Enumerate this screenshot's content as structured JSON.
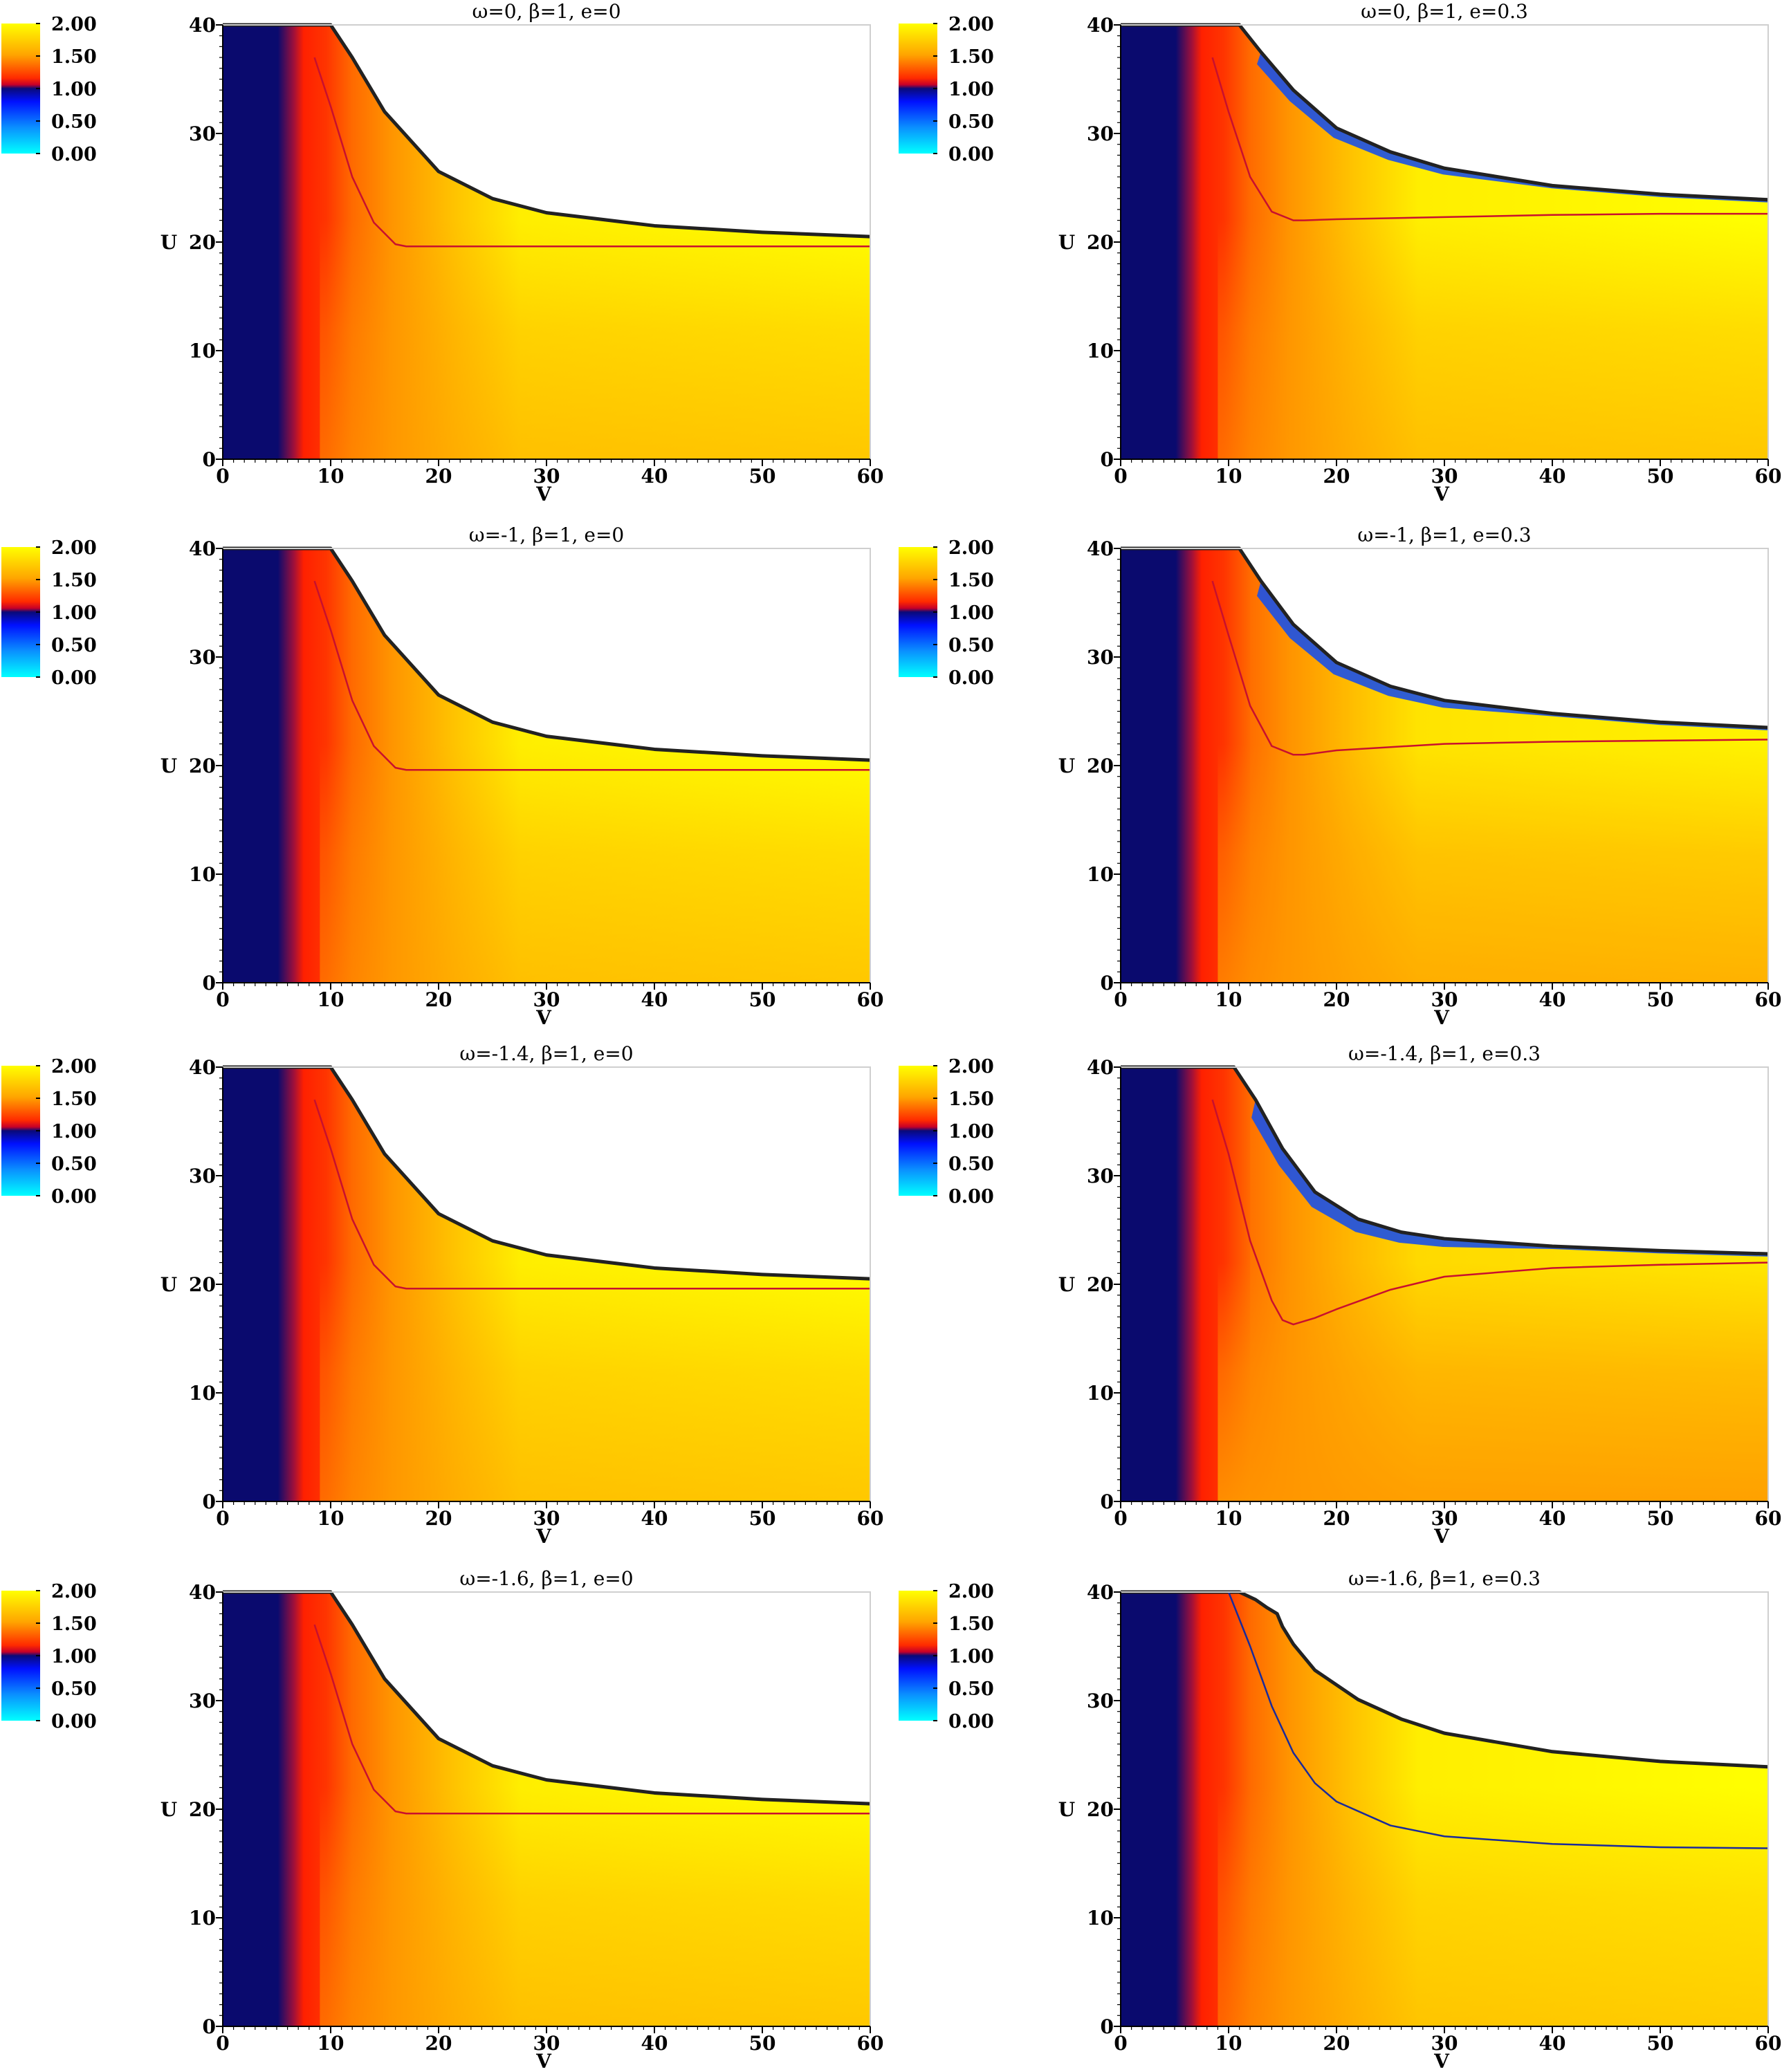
{
  "colorbar": {
    "ticks": [
      "2.00",
      "1.50",
      "1.00",
      "0.50",
      "0.00"
    ],
    "stops": [
      {
        "offset": 0.0,
        "color": "#ffff00"
      },
      {
        "offset": 0.24,
        "color": "#ffa500"
      },
      {
        "offset": 0.42,
        "color": "#ff2a00"
      },
      {
        "offset": 0.47,
        "color": "#c80028"
      },
      {
        "offset": 0.5,
        "color": "#0a0a78"
      },
      {
        "offset": 0.6,
        "color": "#0010ff"
      },
      {
        "offset": 0.8,
        "color": "#0a90ff"
      },
      {
        "offset": 1.0,
        "color": "#00ffff"
      }
    ]
  },
  "colors": {
    "dark_region": "#0a0a6e",
    "red": "#ff2000",
    "orange": "#ff9400",
    "yellow": "#ffff00",
    "blue_sliver": "#1a50e8",
    "boundary": "#222222",
    "red_curve": "#c8102e",
    "blue_curve": "#1a2a9a"
  },
  "chart_data": [
    {
      "type": "heatmap",
      "title": "ω=0,   β=1,   e=0",
      "xlabel": "V",
      "ylabel": "U",
      "xlim": [
        0,
        60
      ],
      "ylim": [
        0,
        40
      ],
      "xticks": [
        "0",
        "10",
        "20",
        "30",
        "40",
        "50",
        "60"
      ],
      "yticks": [
        "0",
        "10",
        "20",
        "30",
        "40"
      ],
      "colorbar_range": [
        0.0,
        2.0
      ],
      "boundary": {
        "x": [
          0,
          10,
          12,
          15,
          20,
          25,
          30,
          40,
          50,
          60
        ],
        "y": [
          40,
          40,
          37,
          32,
          26.5,
          24,
          22.7,
          21.5,
          20.9,
          20.5
        ]
      },
      "contour": {
        "x": [
          8.5,
          10,
          12,
          14,
          16,
          17,
          20,
          30,
          40,
          50,
          60
        ],
        "y": [
          37,
          32.5,
          26,
          21.8,
          19.8,
          19.6,
          19.6,
          19.6,
          19.6,
          19.6,
          19.6
        ]
      },
      "contour_color": "red",
      "blue_sliver": false,
      "orange_strength": 1.0
    },
    {
      "type": "heatmap",
      "title": "ω=0,   β=1,   e=0.3",
      "xlabel": "V",
      "ylabel": "U",
      "xlim": [
        0,
        60
      ],
      "ylim": [
        0,
        40
      ],
      "xticks": [
        "0",
        "10",
        "20",
        "30",
        "40",
        "50",
        "60"
      ],
      "yticks": [
        "0",
        "10",
        "20",
        "30",
        "40"
      ],
      "colorbar_range": [
        0.0,
        2.0
      ],
      "boundary": {
        "x": [
          0,
          11,
          13,
          16,
          20,
          25,
          30,
          40,
          50,
          60
        ],
        "y": [
          40,
          40,
          37.5,
          34,
          30.5,
          28.3,
          26.8,
          25.2,
          24.4,
          23.9
        ]
      },
      "contour": {
        "x": [
          8.5,
          10,
          12,
          14,
          16,
          17,
          20,
          30,
          40,
          50,
          60
        ],
        "y": [
          37,
          32,
          26,
          22.8,
          22,
          22,
          22.1,
          22.3,
          22.5,
          22.6,
          22.6
        ]
      },
      "contour_color": "red",
      "blue_sliver": true,
      "orange_strength": 1.0
    },
    {
      "type": "heatmap",
      "title": "ω=-1,   β=1,   e=0",
      "xlabel": "V",
      "ylabel": "U",
      "xlim": [
        0,
        60
      ],
      "ylim": [
        0,
        40
      ],
      "xticks": [
        "0",
        "10",
        "20",
        "30",
        "40",
        "50",
        "60"
      ],
      "yticks": [
        "0",
        "10",
        "20",
        "30",
        "40"
      ],
      "colorbar_range": [
        0.0,
        2.0
      ],
      "boundary": {
        "x": [
          0,
          10,
          12,
          15,
          20,
          25,
          30,
          40,
          50,
          60
        ],
        "y": [
          40,
          40,
          37,
          32,
          26.5,
          24,
          22.7,
          21.5,
          20.9,
          20.5
        ]
      },
      "contour": {
        "x": [
          8.5,
          10,
          12,
          14,
          16,
          17,
          20,
          30,
          40,
          50,
          60
        ],
        "y": [
          37,
          32.5,
          26,
          21.8,
          19.8,
          19.6,
          19.6,
          19.6,
          19.6,
          19.6,
          19.6
        ]
      },
      "contour_color": "red",
      "blue_sliver": false,
      "orange_strength": 1.0
    },
    {
      "type": "heatmap",
      "title": "ω=-1,   β=1,   e=0.3",
      "xlabel": "V",
      "ylabel": "U",
      "xlim": [
        0,
        60
      ],
      "ylim": [
        0,
        40
      ],
      "xticks": [
        "0",
        "10",
        "20",
        "30",
        "40",
        "50",
        "60"
      ],
      "yticks": [
        "0",
        "10",
        "20",
        "30",
        "40"
      ],
      "colorbar_range": [
        0.0,
        2.0
      ],
      "boundary": {
        "x": [
          0,
          11,
          13,
          16,
          20,
          25,
          30,
          40,
          50,
          60
        ],
        "y": [
          40,
          40,
          37,
          33,
          29.5,
          27.3,
          26,
          24.8,
          24,
          23.5
        ]
      },
      "contour": {
        "x": [
          8.5,
          10,
          12,
          14,
          16,
          17,
          20,
          30,
          40,
          50,
          60
        ],
        "y": [
          37,
          32,
          25.5,
          21.8,
          21,
          21,
          21.4,
          22,
          22.2,
          22.3,
          22.4
        ]
      },
      "contour_color": "red",
      "blue_sliver": true,
      "orange_strength": 1.3
    },
    {
      "type": "heatmap",
      "title": "ω=-1.4,   β=1,   e=0",
      "xlabel": "V",
      "ylabel": "U",
      "xlim": [
        0,
        60
      ],
      "ylim": [
        0,
        40
      ],
      "xticks": [
        "0",
        "10",
        "20",
        "30",
        "40",
        "50",
        "60"
      ],
      "yticks": [
        "0",
        "10",
        "20",
        "30",
        "40"
      ],
      "colorbar_range": [
        0.0,
        2.0
      ],
      "boundary": {
        "x": [
          0,
          10,
          12,
          15,
          20,
          25,
          30,
          40,
          50,
          60
        ],
        "y": [
          40,
          40,
          37,
          32,
          26.5,
          24,
          22.7,
          21.5,
          20.9,
          20.5
        ]
      },
      "contour": {
        "x": [
          8.5,
          10,
          12,
          14,
          16,
          17,
          20,
          30,
          40,
          50,
          60
        ],
        "y": [
          37,
          32.5,
          26,
          21.8,
          19.8,
          19.6,
          19.6,
          19.6,
          19.6,
          19.6,
          19.6
        ]
      },
      "contour_color": "red",
      "blue_sliver": false,
      "orange_strength": 1.0
    },
    {
      "type": "heatmap",
      "title": "ω=-1.4,   β=1,   e=0.3",
      "xlabel": "V",
      "ylabel": "U",
      "xlim": [
        0,
        60
      ],
      "ylim": [
        0,
        40
      ],
      "xticks": [
        "0",
        "10",
        "20",
        "30",
        "40",
        "50",
        "60"
      ],
      "yticks": [
        "0",
        "10",
        "20",
        "30",
        "40"
      ],
      "colorbar_range": [
        0.0,
        2.0
      ],
      "boundary": {
        "x": [
          0,
          10.5,
          12.5,
          15,
          18,
          22,
          26,
          30,
          40,
          50,
          60
        ],
        "y": [
          40,
          40,
          37,
          32.5,
          28.5,
          26,
          24.8,
          24.2,
          23.5,
          23.1,
          22.8
        ]
      },
      "contour": {
        "x": [
          8.5,
          10,
          12,
          14,
          15,
          16,
          18,
          20,
          25,
          30,
          40,
          50,
          60
        ],
        "y": [
          37,
          32,
          24,
          18.5,
          16.7,
          16.3,
          16.9,
          17.7,
          19.5,
          20.7,
          21.5,
          21.8,
          22
        ]
      },
      "contour_color": "red",
      "blue_sliver": true,
      "orange_strength": 1.6
    },
    {
      "type": "heatmap",
      "title": "ω=-1.6,   β=1,   e=0",
      "xlabel": "V",
      "ylabel": "U",
      "xlim": [
        0,
        60
      ],
      "ylim": [
        0,
        40
      ],
      "xticks": [
        "0",
        "10",
        "20",
        "30",
        "40",
        "50",
        "60"
      ],
      "yticks": [
        "0",
        "10",
        "20",
        "30",
        "40"
      ],
      "colorbar_range": [
        0.0,
        2.0
      ],
      "boundary": {
        "x": [
          0,
          10,
          12,
          15,
          20,
          25,
          30,
          40,
          50,
          60
        ],
        "y": [
          40,
          40,
          37,
          32,
          26.5,
          24,
          22.7,
          21.5,
          20.9,
          20.5
        ]
      },
      "contour": {
        "x": [
          8.5,
          10,
          12,
          14,
          16,
          17,
          20,
          30,
          40,
          50,
          60
        ],
        "y": [
          37,
          32.5,
          26,
          21.8,
          19.8,
          19.6,
          19.6,
          19.6,
          19.6,
          19.6,
          19.6
        ]
      },
      "contour_color": "red",
      "blue_sliver": false,
      "orange_strength": 1.0
    },
    {
      "type": "heatmap",
      "title": "ω=-1.6,   β=1,   e=0.3",
      "xlabel": "V",
      "ylabel": "U",
      "xlim": [
        0,
        60
      ],
      "ylim": [
        0,
        40
      ],
      "xticks": [
        "0",
        "10",
        "20",
        "30",
        "40",
        "50",
        "60"
      ],
      "yticks": [
        "0",
        "10",
        "20",
        "30",
        "40"
      ],
      "colorbar_range": [
        0.0,
        2.0
      ],
      "boundary": {
        "x": [
          0,
          11,
          12.5,
          13.5,
          14.5,
          15,
          16,
          18,
          22,
          26,
          30,
          40,
          50,
          60
        ],
        "y": [
          40,
          40,
          39.3,
          38.6,
          38,
          36.8,
          35.2,
          32.8,
          30.1,
          28.3,
          27,
          25.3,
          24.4,
          23.9
        ]
      },
      "contour": {
        "x": [
          10,
          12,
          14,
          16,
          18,
          20,
          25,
          30,
          40,
          50,
          60
        ],
        "y": [
          40,
          35,
          29.5,
          25.2,
          22.4,
          20.7,
          18.5,
          17.5,
          16.8,
          16.5,
          16.4
        ]
      },
      "contour_color": "blue",
      "blue_sliver": false,
      "orange_strength": 0.9
    }
  ]
}
